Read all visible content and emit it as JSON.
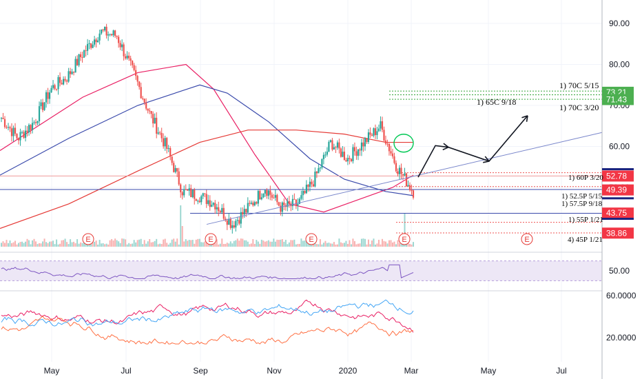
{
  "chart_data": [
    {
      "type": "candlestick",
      "pane": "price",
      "price_axis": {
        "ticks": [
          90,
          80,
          70,
          60,
          50,
          40
        ],
        "tick_labels": [
          "90.00",
          "80.00",
          "70.00",
          "60.00",
          "50.00"
        ]
      },
      "time_axis": {
        "ticks": [
          "May",
          "Jul",
          "Sep",
          "Nov",
          "2020",
          "Mar",
          "May",
          "Jul"
        ]
      },
      "ohlc_anchor_closes": [
        {
          "t": "Mar",
          "c": 67
        },
        {
          "t": "Apr",
          "c": 62
        },
        {
          "t": "May",
          "c": 66
        },
        {
          "t": "May-late",
          "c": 74
        },
        {
          "t": "Jun",
          "c": 77
        },
        {
          "t": "Jul",
          "c": 83
        },
        {
          "t": "Jul-mid",
          "c": 88
        },
        {
          "t": "Aug",
          "c": 87
        },
        {
          "t": "Aug-mid",
          "c": 78
        },
        {
          "t": "Aug-late",
          "c": 68
        },
        {
          "t": "Sep-start",
          "c": 60
        },
        {
          "t": "Sep",
          "c": 49
        },
        {
          "t": "Sep-mid",
          "c": 48
        },
        {
          "t": "Oct",
          "c": 46
        },
        {
          "t": "Oct-mid",
          "c": 41
        },
        {
          "t": "Nov",
          "c": 45
        },
        {
          "t": "Nov-mid",
          "c": 50
        },
        {
          "t": "Dec",
          "c": 45
        },
        {
          "t": "Dec-late",
          "c": 46
        },
        {
          "t": "2020",
          "c": 52
        },
        {
          "t": "Jan-mid",
          "c": 61
        },
        {
          "t": "Feb",
          "c": 57
        },
        {
          "t": "Feb-mid",
          "c": 61
        },
        {
          "t": "Feb-late",
          "c": 65
        },
        {
          "t": "Feb-end",
          "c": 55
        },
        {
          "t": "Mar",
          "c": 49
        }
      ],
      "moving_averages": [
        {
          "color": "#e91e63",
          "pts": [
            [
              0,
              59
            ],
            [
              120,
              72
            ],
            [
              200,
              78
            ],
            [
              270,
              80
            ],
            [
              310,
              74
            ],
            [
              370,
              58
            ],
            [
              420,
              46
            ],
            [
              470,
              44
            ],
            [
              520,
              47
            ],
            [
              570,
              50
            ],
            [
              600,
              53
            ]
          ]
        },
        {
          "color": "#3949ab",
          "pts": [
            [
              0,
              53
            ],
            [
              100,
              62
            ],
            [
              200,
              70
            ],
            [
              290,
              75
            ],
            [
              330,
              73
            ],
            [
              390,
              66
            ],
            [
              450,
              57
            ],
            [
              500,
              52
            ],
            [
              560,
              49
            ],
            [
              600,
              48
            ]
          ]
        },
        {
          "color": "#e53935",
          "pts": [
            [
              0,
              40
            ],
            [
              100,
              46
            ],
            [
              200,
              54
            ],
            [
              290,
              61
            ],
            [
              360,
              64
            ],
            [
              430,
              64
            ],
            [
              500,
              63
            ],
            [
              560,
              61
            ],
            [
              600,
              61
            ]
          ]
        }
      ],
      "levels": [
        {
          "price": 73.21,
          "label": "73.21",
          "color": "#4caf50"
        },
        {
          "price": 71.43,
          "label": "71.43",
          "color": "#4caf50"
        },
        {
          "price": 52.78,
          "label": "52.78",
          "color": "#f23645"
        },
        {
          "price": 49.39,
          "label": "49.39",
          "color": "#f23645"
        },
        {
          "price": 43.75,
          "label": "43.75",
          "color": "#f23645"
        },
        {
          "price": 38.86,
          "label": "38.86",
          "color": "#f23645"
        }
      ],
      "option_annotations": [
        "1) 70C 5/15",
        "1) 65C 9/18",
        "1) 70C 3/20",
        "1) 60P 3/20",
        "1) 52.5P 5/15",
        "1) 57.5P 9/18",
        "1) 55P 1/21",
        "4) 45P 1/21"
      ],
      "earnings_marks": [
        "E",
        "E",
        "E",
        "E",
        "E"
      ]
    },
    {
      "type": "line",
      "pane": "rsi",
      "tick_labels": [
        "50.00"
      ],
      "band": [
        30,
        70
      ],
      "color": "#7e57c2"
    },
    {
      "type": "line",
      "pane": "oscillators",
      "tick_labels": [
        "60.0000",
        "20.0000"
      ],
      "series_colors": [
        "#e91e63",
        "#ff7043",
        "#42a5f5"
      ]
    }
  ]
}
